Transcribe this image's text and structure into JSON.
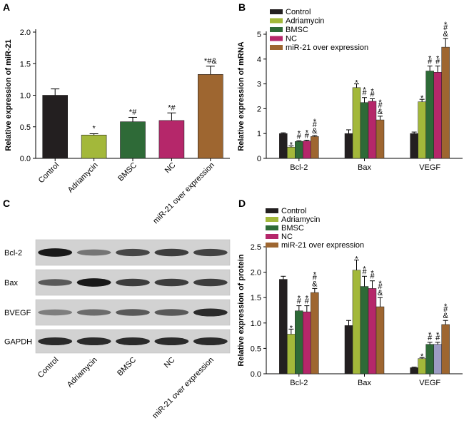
{
  "panels": [
    {
      "id": "A",
      "label": "A"
    },
    {
      "id": "B",
      "label": "B"
    },
    {
      "id": "C",
      "label": "C"
    },
    {
      "id": "D",
      "label": "D"
    }
  ],
  "colors": {
    "Control": "#231f20",
    "Adriamycin": "#a3b83a",
    "BMSC": "#2e6a37",
    "NC": "#b5276a",
    "miR-21 over expression": "#9e6630",
    "NC_vegf_protein": "#9c9cc4"
  },
  "chart_data": [
    {
      "panel": "A",
      "type": "bar",
      "title": "",
      "xlabel": "",
      "ylabel": "Relative expression of miR-21",
      "ylim": [
        0,
        2.0
      ],
      "yticks": [
        "0.0",
        "0.5",
        "1.0",
        "1.5",
        "2.0"
      ],
      "categories": [
        "Control",
        "Adriamycin",
        "BMSC",
        "NC",
        "miR-21 over expression"
      ],
      "values": [
        1.0,
        0.37,
        0.58,
        0.6,
        1.33
      ],
      "errors": [
        0.1,
        0.02,
        0.07,
        0.12,
        0.13
      ],
      "significance": [
        "",
        "*",
        "*#",
        "*#",
        "*#&"
      ]
    },
    {
      "panel": "B",
      "type": "bar",
      "title": "",
      "xlabel": "",
      "ylabel": "Relative expression of mRNA",
      "ylim": [
        0,
        5
      ],
      "yticks": [
        "0",
        "1",
        "2",
        "3",
        "4",
        "5"
      ],
      "legend_position": "top-left",
      "categories": [
        "Bcl-2",
        "Bax",
        "VEGF"
      ],
      "series": [
        {
          "name": "Control",
          "values": [
            1.0,
            1.0,
            1.0
          ],
          "errors": [
            0.03,
            0.15,
            0.06
          ],
          "significance": [
            "",
            "",
            ""
          ]
        },
        {
          "name": "Adriamycin",
          "values": [
            0.45,
            2.85,
            2.28
          ],
          "errors": [
            0.05,
            0.15,
            0.1
          ],
          "significance": [
            "*",
            "*",
            "*"
          ]
        },
        {
          "name": "BMSC",
          "values": [
            0.68,
            2.25,
            3.52
          ],
          "errors": [
            0.03,
            0.2,
            0.2
          ],
          "significance": [
            "*#",
            "*#",
            "*#"
          ]
        },
        {
          "name": "NC",
          "values": [
            0.7,
            2.3,
            3.47
          ],
          "errors": [
            0.03,
            0.1,
            0.25
          ],
          "significance": [
            "*#",
            "*#",
            "*#"
          ]
        },
        {
          "name": "miR-21 over expression",
          "values": [
            0.88,
            1.55,
            4.48
          ],
          "errors": [
            0.04,
            0.15,
            0.35
          ],
          "significance": [
            "*#&",
            "*#&",
            "*#&"
          ]
        }
      ]
    },
    {
      "panel": "D",
      "type": "bar",
      "title": "",
      "xlabel": "",
      "ylabel": "Relative expression of protein",
      "ylim": [
        0,
        2.5
      ],
      "yticks": [
        "0.0",
        "0.5",
        "1.0",
        "1.5",
        "2.0",
        "2.5"
      ],
      "legend_position": "top",
      "categories": [
        "Bcl-2",
        "Bax",
        "VEGF"
      ],
      "series": [
        {
          "name": "Control",
          "values": [
            1.86,
            0.95,
            0.12
          ],
          "errors": [
            0.06,
            0.1,
            0.01
          ],
          "significance": [
            "",
            "",
            ""
          ]
        },
        {
          "name": "Adriamycin",
          "values": [
            0.78,
            2.04,
            0.3
          ],
          "errors": [
            0.1,
            0.2,
            0.02
          ],
          "significance": [
            "*",
            "*",
            "*"
          ]
        },
        {
          "name": "BMSC",
          "values": [
            1.24,
            1.72,
            0.58
          ],
          "errors": [
            0.1,
            0.2,
            0.04
          ],
          "significance": [
            "*#",
            "*#",
            "*#"
          ]
        },
        {
          "name": "NC",
          "values": [
            1.22,
            1.68,
            0.58
          ],
          "errors": [
            0.12,
            0.15,
            0.04
          ],
          "significance": [
            "*#",
            "*#",
            "*#"
          ]
        },
        {
          "name": "miR-21 over expression",
          "values": [
            1.6,
            1.32,
            0.97
          ],
          "errors": [
            0.08,
            0.18,
            0.08
          ],
          "significance": [
            "*#&",
            "*#&",
            "*#&"
          ]
        }
      ]
    }
  ],
  "blot": {
    "row_labels": [
      "Bcl-2",
      "Bax",
      "BVEGF",
      "GAPDH"
    ],
    "lane_labels": [
      "Control",
      "Adriamycin",
      "BMSC",
      "NC",
      "miR-21 over expression"
    ],
    "band_intensity": [
      [
        0.95,
        0.45,
        0.7,
        0.75,
        0.72
      ],
      [
        0.6,
        0.95,
        0.75,
        0.75,
        0.75
      ],
      [
        0.4,
        0.5,
        0.6,
        0.6,
        0.85
      ],
      [
        0.85,
        0.85,
        0.85,
        0.85,
        0.85
      ]
    ]
  }
}
